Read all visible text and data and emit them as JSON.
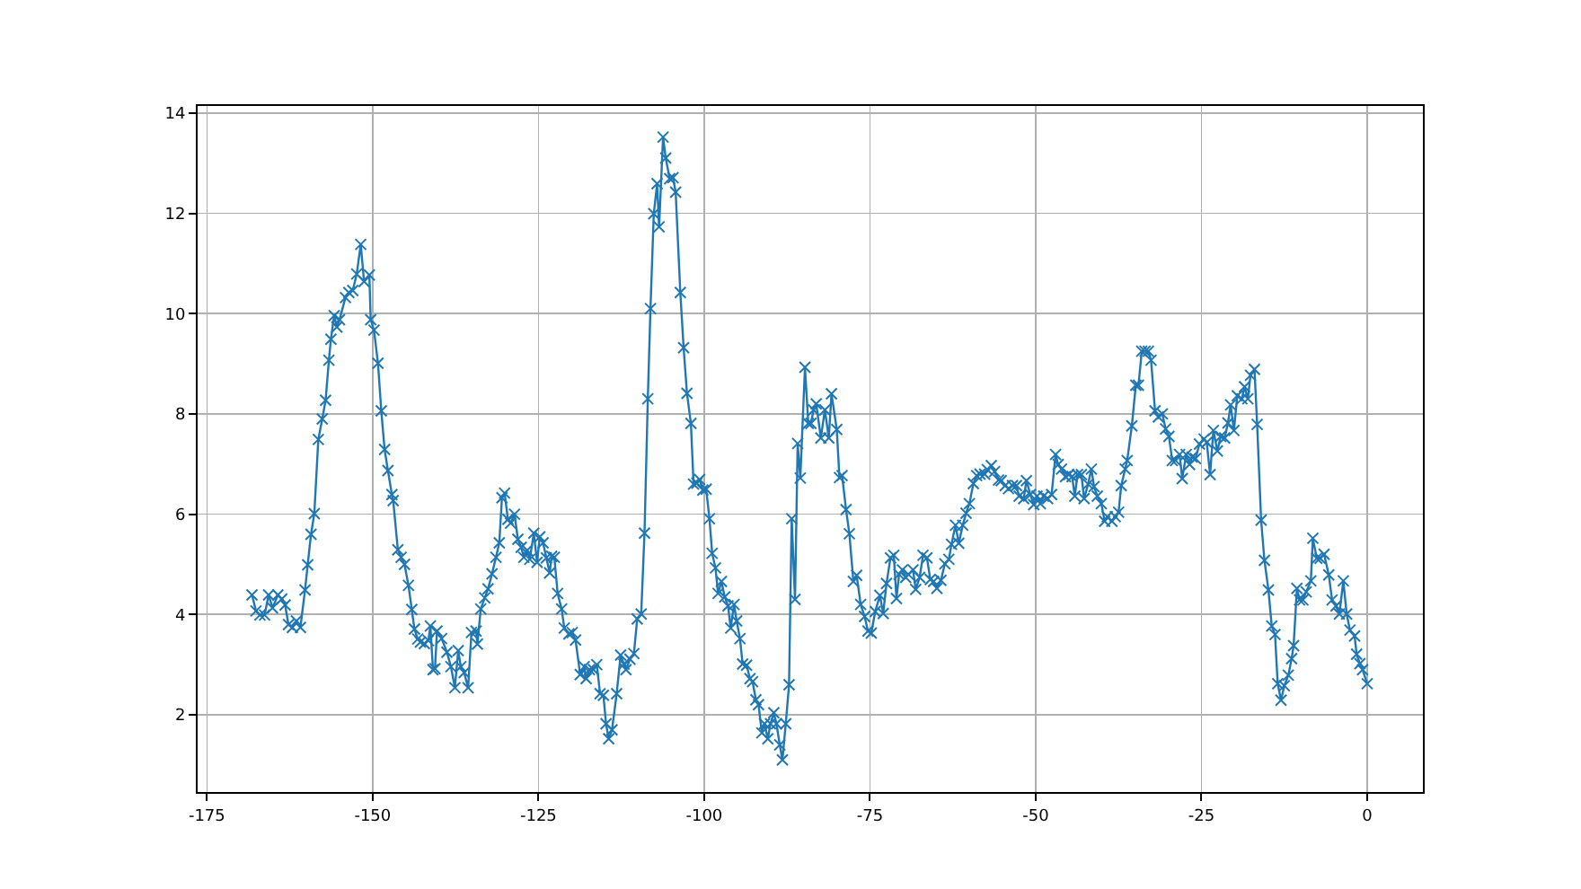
{
  "chart_data": {
    "type": "line",
    "grid": true,
    "marker": "cross",
    "line_style": "solid",
    "xlim": [
      -176.4,
      8.4
    ],
    "ylim": [
      0.46,
      14.14
    ],
    "xticks": [
      -175,
      -150,
      -125,
      -100,
      -75,
      -50,
      -25,
      0
    ],
    "yticks": [
      2,
      4,
      6,
      8,
      10,
      12,
      14
    ],
    "series": [
      {
        "color": "#1f77b4",
        "x": [
          -168.2,
          -167.6,
          -167,
          -166.3,
          -165.7,
          -165.1,
          -164.3,
          -163.7,
          -163.2,
          -162.7,
          -162.1,
          -161.5,
          -160.9,
          -160.2,
          -159.8,
          -159.3,
          -158.8,
          -158.2,
          -157.6,
          -157.1,
          -156.6,
          -156.3,
          -155.8,
          -155.4,
          -155,
          -154.1,
          -153.6,
          -153,
          -152.4,
          -151.8,
          -151.3,
          -150.5,
          -150.3,
          -149.8,
          -149.2,
          -148.7,
          -148.2,
          -147.7,
          -147.1,
          -146.9,
          -146.2,
          -145.7,
          -145.2,
          -144.6,
          -144.1,
          -143.7,
          -143.2,
          -142.8,
          -142.2,
          -141.6,
          -141.3,
          -140.9,
          -140.6,
          -140.3,
          -139.6,
          -138.8,
          -138.2,
          -137.6,
          -137.1,
          -136.7,
          -136.2,
          -135.6,
          -135.1,
          -134.4,
          -134.2,
          -133.7,
          -133.1,
          -132.6,
          -132,
          -131.4,
          -130.9,
          -130.5,
          -130.1,
          -129.6,
          -129.2,
          -128.6,
          -128.1,
          -127.6,
          -127.2,
          -126.7,
          -126.3,
          -125.7,
          -125.2,
          -124.8,
          -124.3,
          -123.8,
          -123.3,
          -123,
          -122.6,
          -122.1,
          -121.5,
          -121.1,
          -120.4,
          -119.9,
          -119.4,
          -118.7,
          -118.1,
          -117.8,
          -117.3,
          -116.7,
          -116.2,
          -115.7,
          -115.2,
          -114.8,
          -114.4,
          -113.9,
          -113.2,
          -112.6,
          -112.1,
          -111.8,
          -111.2,
          -110.6,
          -110.1,
          -109.5,
          -109,
          -108.5,
          -108.1,
          -107.6,
          -107.1,
          -106.8,
          -106.2,
          -105.8,
          -105.2,
          -104.7,
          -104.3,
          -103.6,
          -103.1,
          -102.6,
          -102,
          -101.6,
          -101.1,
          -100.7,
          -100.2,
          -99.7,
          -99.2,
          -98.8,
          -98.3,
          -97.9,
          -97.4,
          -96.9,
          -96.4,
          -96,
          -95.5,
          -95.1,
          -94.6,
          -94.2,
          -93.6,
          -93.1,
          -92.7,
          -92.2,
          -91.8,
          -91.3,
          -90.9,
          -90.4,
          -90,
          -89.5,
          -89.1,
          -88.6,
          -88.2,
          -87.7,
          -87.2,
          -86.8,
          -86.3,
          -85.9,
          -85.5,
          -84.8,
          -84.3,
          -83.9,
          -83.5,
          -83.1,
          -82.4,
          -81.8,
          -81.2,
          -80.8,
          -80,
          -79.6,
          -79.2,
          -78.6,
          -78.1,
          -77.5,
          -77,
          -76.4,
          -75.8,
          -75.3,
          -74.8,
          -74.2,
          -73.5,
          -73,
          -72.5,
          -71.9,
          -71.4,
          -71,
          -70.6,
          -70.1,
          -69.6,
          -69.2,
          -68.5,
          -68.1,
          -67.5,
          -67,
          -66.4,
          -65.9,
          -65.4,
          -64.9,
          -64.3,
          -63.7,
          -63.1,
          -62.7,
          -62.1,
          -61.6,
          -61,
          -60.5,
          -60,
          -59.4,
          -58.9,
          -58.4,
          -57.7,
          -57.3,
          -56.7,
          -56.2,
          -55.6,
          -55.2,
          -54.6,
          -54.1,
          -53.5,
          -52.9,
          -52.5,
          -51.8,
          -51.4,
          -50.8,
          -50.3,
          -49.8,
          -49.3,
          -48.8,
          -48.2,
          -47.6,
          -47,
          -46.6,
          -46.1,
          -45.5,
          -45,
          -44.5,
          -44.1,
          -43.7,
          -43.1,
          -42.7,
          -42.1,
          -41.6,
          -41.2,
          -40.7,
          -40.1,
          -39.6,
          -39.2,
          -38.5,
          -38,
          -37.5,
          -37.1,
          -36.5,
          -36.2,
          -35.5,
          -34.9,
          -34.5,
          -34,
          -33.5,
          -33,
          -32.6,
          -32,
          -31.5,
          -30.9,
          -30.4,
          -29.9,
          -29.4,
          -28.9,
          -28.3,
          -27.9,
          -27.3,
          -26.8,
          -26.4,
          -25.9,
          -25.3,
          -24.6,
          -24.2,
          -23.7,
          -23.2,
          -22.6,
          -22.1,
          -21.5,
          -21,
          -20.6,
          -20.1,
          -19.6,
          -18.9,
          -18.5,
          -18,
          -17.6,
          -17,
          -16.6,
          -16,
          -15.5,
          -14.9,
          -14.4,
          -13.9,
          -13.5,
          -13,
          -12.5,
          -11.9,
          -11.4,
          -11.1,
          -10.6,
          -10.2,
          -9.7,
          -9.2,
          -8.5,
          -8.2,
          -7.6,
          -7.1,
          -6.5,
          -5.8,
          -5.3,
          -4.7,
          -4.2,
          -3.6,
          -3.1,
          -2.6,
          -1.9,
          -1.6,
          -1.1,
          -0.7,
          0
        ],
        "values": [
          4.39,
          4.07,
          3.99,
          3.99,
          4.39,
          4.13,
          4.39,
          4.31,
          4.19,
          3.8,
          3.74,
          3.87,
          3.74,
          4.49,
          4.99,
          5.6,
          6.01,
          7.49,
          7.9,
          8.27,
          9.07,
          9.49,
          9.96,
          9.73,
          9.88,
          10.32,
          10.42,
          10.46,
          10.79,
          11.38,
          10.64,
          10.77,
          9.88,
          9.67,
          9.01,
          8.06,
          7.29,
          6.87,
          6.39,
          6.27,
          5.29,
          5.14,
          5,
          4.58,
          4.1,
          3.71,
          3.51,
          3.45,
          3.42,
          3.48,
          3.77,
          2.9,
          2.92,
          3.67,
          3.52,
          3.25,
          2.96,
          2.54,
          3.28,
          2.96,
          2.84,
          2.54,
          3.64,
          3.67,
          3.41,
          4.11,
          4.33,
          4.51,
          4.81,
          5.14,
          5.43,
          6.33,
          6.42,
          5.9,
          5.82,
          6,
          5.5,
          5.34,
          5.14,
          5.28,
          5.1,
          5.62,
          5.04,
          5.55,
          5.43,
          5.13,
          4.83,
          5.16,
          5.14,
          4.42,
          4.11,
          3.73,
          3.61,
          3.64,
          3.49,
          2.8,
          2.96,
          2.72,
          2.9,
          2.9,
          3,
          2.42,
          2.39,
          1.82,
          1.52,
          1.7,
          2.42,
          3.19,
          3.01,
          2.9,
          3.11,
          3.22,
          3.91,
          4.01,
          5.62,
          8.3,
          10.1,
          11.99,
          12.59,
          11.73,
          13.52,
          13.1,
          12.69,
          12.71,
          12.42,
          10.42,
          9.32,
          8.41,
          7.81,
          6.6,
          6.62,
          6.69,
          6.48,
          6.5,
          5.91,
          5.22,
          4.93,
          4.42,
          4.66,
          4.35,
          4.17,
          3.73,
          4.2,
          3.87,
          3.52,
          3.01,
          2.99,
          2.72,
          2.66,
          2.3,
          2.2,
          1.64,
          1.82,
          1.52,
          1.82,
          2.04,
          1.82,
          1.4,
          1.1,
          1.82,
          2.6,
          5.91,
          4.3,
          7.41,
          6.72,
          8.93,
          7.81,
          7.81,
          8.08,
          8.2,
          7.52,
          8.08,
          7.52,
          8.4,
          7.69,
          6.73,
          6.77,
          6.09,
          5.61,
          4.66,
          4.78,
          4.2,
          3.96,
          3.67,
          3.63,
          4.06,
          4.38,
          4.02,
          4.62,
          5.13,
          5.18,
          4.32,
          4.8,
          4.89,
          4.74,
          4.8,
          4.89,
          4.5,
          4.74,
          5.18,
          5.13,
          4.7,
          4.66,
          4.52,
          4.68,
          5.01,
          5.1,
          5.4,
          5.78,
          5.42,
          5.78,
          6.02,
          6.21,
          6.61,
          6.77,
          6.8,
          6.8,
          6.89,
          6.97,
          6.85,
          6.68,
          6.67,
          6.57,
          6.51,
          6.57,
          6.57,
          6.36,
          6.31,
          6.67,
          6.39,
          6.19,
          6.36,
          6.21,
          6.36,
          6.31,
          6.39,
          7.19,
          6.99,
          6.9,
          6.75,
          6.79,
          6.75,
          6.36,
          6.79,
          6.79,
          6.31,
          6.6,
          6.9,
          6.55,
          6.36,
          6.21,
          5.86,
          5.95,
          5.86,
          5.95,
          6.04,
          6.57,
          6.9,
          7.07,
          7.76,
          8.57,
          8.57,
          9.25,
          9.25,
          9.25,
          9.07,
          8.06,
          7.94,
          8,
          7.7,
          7.55,
          7.07,
          7.07,
          7.19,
          6.71,
          7.19,
          6.99,
          7.14,
          7.11,
          7.4,
          7.5,
          7.43,
          6.79,
          7.67,
          7.26,
          7.55,
          7.52,
          7.82,
          8.18,
          7.67,
          8.36,
          8.3,
          8.54,
          8.3,
          8.77,
          8.89,
          7.79,
          5.88,
          5.08,
          4.49,
          3.77,
          3.6,
          2.62,
          2.29,
          2.58,
          2.79,
          3.12,
          3.38,
          4.52,
          4.29,
          4.29,
          4.45,
          4.67,
          5.52,
          5.12,
          5.12,
          5.2,
          4.79,
          4.29,
          4.17,
          4.01,
          4.67,
          4.01,
          3.69,
          3.57,
          3.21,
          3.02,
          2.9,
          2.62
        ]
      }
    ]
  }
}
